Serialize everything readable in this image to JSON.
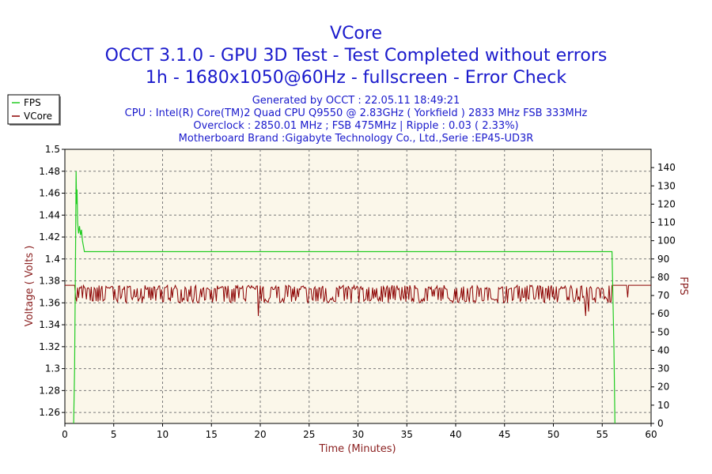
{
  "colors": {
    "fps": "#22cc22",
    "vcore": "#8b0000",
    "title": "#1a1acc",
    "plot_bg": "#fbf7ea",
    "grid": "#7a7a7a",
    "axis_title": "#8b2020"
  },
  "chart_data": {
    "type": "line",
    "title": "VCore",
    "subtitle_lines": [
      "OCCT 3.1.0 - GPU 3D Test - Test Completed without errors",
      "1h - 1680x1050@60Hz - fullscreen - Error Check"
    ],
    "info_lines": [
      "Generated by OCCT : 22.05.11 18:49:21",
      "CPU : Intel(R) Core(TM)2 Quad CPU Q9550 @ 2.83GHz ( Yorkfield ) 2833 MHz FSB 333MHz",
      "Overclock : 2850.01 MHz ; FSB 475MHz | Ripple : 0.03 ( 2.33%)",
      "Motherboard Brand :Gigabyte Technology Co., Ltd.,Serie :EP45-UD3R"
    ],
    "xlabel": "Time (Minutes)",
    "ylabel": "Voltage ( Volts )",
    "y2label": "FPS",
    "xlim": [
      0,
      60
    ],
    "ylim": [
      1.25,
      1.5
    ],
    "y2lim": [
      0,
      150
    ],
    "x_ticks": [
      "0",
      "5",
      "10",
      "15",
      "20",
      "25",
      "30",
      "35",
      "40",
      "45",
      "50",
      "55",
      "60"
    ],
    "y_ticks": [
      "1.26",
      "1.28",
      "1.3",
      "1.32",
      "1.34",
      "1.36",
      "1.38",
      "1.4",
      "1.42",
      "1.44",
      "1.46",
      "1.48",
      "1.5"
    ],
    "y2_ticks": [
      "0",
      "10",
      "20",
      "30",
      "40",
      "50",
      "60",
      "70",
      "80",
      "90",
      "100",
      "110",
      "120",
      "130",
      "140"
    ],
    "grid": true,
    "legend_position": "top-left outside",
    "legend": [
      "FPS",
      "VCore"
    ],
    "series": [
      {
        "name": "FPS",
        "axis": "right",
        "points": [
          [
            0.9,
            0
          ],
          [
            1.0,
            30
          ],
          [
            1.1,
            100
          ],
          [
            1.15,
            138
          ],
          [
            1.2,
            120
          ],
          [
            1.25,
            128
          ],
          [
            1.3,
            110
          ],
          [
            1.4,
            104
          ],
          [
            1.5,
            108
          ],
          [
            1.6,
            103
          ],
          [
            1.7,
            106
          ],
          [
            1.8,
            100
          ],
          [
            2.0,
            94
          ],
          [
            2.5,
            94
          ],
          [
            5,
            94
          ],
          [
            10,
            94
          ],
          [
            15,
            94
          ],
          [
            20,
            94
          ],
          [
            25,
            94
          ],
          [
            30,
            94
          ],
          [
            35,
            94
          ],
          [
            40,
            94
          ],
          [
            45,
            94
          ],
          [
            50,
            94
          ],
          [
            55,
            94
          ],
          [
            56.0,
            94
          ],
          [
            56.2,
            40
          ],
          [
            56.3,
            0
          ]
        ]
      },
      {
        "name": "VCore",
        "axis": "left",
        "noise": {
          "start": 1.0,
          "end": 56.0,
          "step": 0.1,
          "low": 1.36,
          "high": 1.376,
          "dips": [
            [
              19.8,
              1.348
            ],
            [
              53.3,
              1.348
            ],
            [
              53.6,
              1.352
            ]
          ]
        },
        "points": [
          [
            0,
            1.376
          ],
          [
            1.0,
            1.376
          ],
          [
            56.0,
            1.376
          ],
          [
            57.5,
            1.376
          ],
          [
            57.6,
            1.365
          ],
          [
            57.7,
            1.376
          ],
          [
            60,
            1.376
          ]
        ]
      }
    ]
  }
}
